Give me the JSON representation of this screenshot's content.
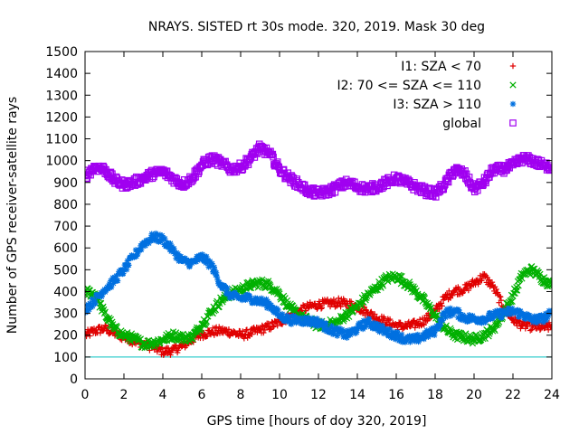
{
  "chart_data": {
    "type": "scatter",
    "title": "NRAYS. SISTED rt 30s mode. 320, 2019. Mask 30 deg",
    "xlabel": "GPS time [hours of doy 320, 2019]",
    "ylabel": "Number of GPS receiver-satellite rays",
    "xlim": [
      0,
      24
    ],
    "ylim": [
      0,
      1500
    ],
    "xticks": [
      "0",
      "2",
      "4",
      "6",
      "8",
      "10",
      "12",
      "14",
      "16",
      "18",
      "20",
      "22",
      "24"
    ],
    "yticks": [
      "0",
      "100",
      "200",
      "300",
      "400",
      "500",
      "600",
      "700",
      "800",
      "900",
      "1000",
      "1100",
      "1200",
      "1300",
      "1400",
      "1500"
    ],
    "reference_line": {
      "y": 100,
      "color": "#00c0c0"
    },
    "legend_position": "top-right",
    "series": [
      {
        "name": "I1: SZA < 70",
        "marker": "+",
        "color": "#e00000",
        "x": [
          0,
          0.5,
          1,
          1.5,
          2,
          2.5,
          3,
          3.5,
          4,
          4.5,
          5,
          5.5,
          6,
          6.5,
          7,
          7.5,
          8,
          8.5,
          9,
          9.5,
          10,
          10.5,
          11,
          11.5,
          12,
          12.5,
          13,
          13.5,
          14,
          14.5,
          15,
          15.5,
          16,
          16.5,
          17,
          17.5,
          18,
          18.5,
          19,
          19.5,
          20,
          20.5,
          21,
          21.5,
          22,
          22.5,
          23,
          23.5,
          24
        ],
        "values": [
          200,
          220,
          230,
          210,
          190,
          175,
          160,
          145,
          125,
          130,
          150,
          180,
          205,
          215,
          220,
          215,
          200,
          210,
          225,
          240,
          260,
          285,
          310,
          330,
          340,
          345,
          350,
          345,
          330,
          305,
          280,
          260,
          245,
          240,
          250,
          270,
          310,
          370,
          405,
          410,
          440,
          470,
          420,
          330,
          270,
          245,
          240,
          235,
          240
        ]
      },
      {
        "name": "I2: 70 <= SZA <= 110",
        "marker": "x",
        "color": "#00b000",
        "x": [
          0,
          0.5,
          1,
          1.5,
          2,
          2.5,
          3,
          3.5,
          4,
          4.5,
          5,
          5.5,
          6,
          6.5,
          7,
          7.5,
          8,
          8.5,
          9,
          9.5,
          10,
          10.5,
          11,
          11.5,
          12,
          12.5,
          13,
          13.5,
          14,
          14.5,
          15,
          15.5,
          16,
          16.5,
          17,
          17.5,
          18,
          18.5,
          19,
          19.5,
          20,
          20.5,
          21,
          21.5,
          22,
          22.5,
          23,
          23.5,
          24
        ],
        "values": [
          400,
          390,
          300,
          230,
          200,
          185,
          160,
          165,
          180,
          200,
          190,
          190,
          250,
          310,
          360,
          390,
          410,
          430,
          440,
          430,
          390,
          330,
          290,
          265,
          245,
          250,
          260,
          300,
          330,
          380,
          420,
          460,
          470,
          440,
          400,
          350,
          290,
          230,
          200,
          190,
          180,
          200,
          230,
          300,
          380,
          480,
          500,
          460,
          430
        ]
      },
      {
        "name": "I3: SZA > 110",
        "marker": "*",
        "color": "#0070e0",
        "x": [
          0,
          0.5,
          1,
          1.5,
          2,
          2.5,
          3,
          3.5,
          4,
          4.5,
          5,
          5.5,
          6,
          6.5,
          7,
          7.5,
          8,
          8.5,
          9,
          9.5,
          10,
          10.5,
          11,
          11.5,
          12,
          12.5,
          13,
          13.5,
          14,
          14.5,
          15,
          15.5,
          16,
          16.5,
          17,
          17.5,
          18,
          18.5,
          19,
          19.5,
          20,
          20.5,
          21,
          21.5,
          22,
          22.5,
          23,
          23.5,
          24
        ],
        "values": [
          320,
          360,
          410,
          450,
          500,
          560,
          620,
          650,
          640,
          590,
          540,
          530,
          560,
          520,
          430,
          380,
          370,
          370,
          355,
          340,
          290,
          270,
          270,
          265,
          260,
          230,
          215,
          200,
          230,
          260,
          240,
          215,
          200,
          180,
          180,
          200,
          220,
          300,
          310,
          280,
          275,
          275,
          290,
          300,
          310,
          295,
          270,
          275,
          300
        ]
      },
      {
        "name": "global",
        "marker": "square",
        "color": "#a000f0",
        "x": [
          0,
          0.5,
          1,
          1.5,
          2,
          2.5,
          3,
          3.5,
          4,
          4.5,
          5,
          5.5,
          6,
          6.5,
          7,
          7.5,
          8,
          8.5,
          9,
          9.5,
          10,
          10.5,
          11,
          11.5,
          12,
          12.5,
          13,
          13.5,
          14,
          14.5,
          15,
          15.5,
          16,
          16.5,
          17,
          17.5,
          18,
          18.5,
          19,
          19.5,
          20,
          20.5,
          21,
          21.5,
          22,
          22.5,
          23,
          23.5,
          24
        ],
        "values": [
          930,
          970,
          960,
          910,
          890,
          900,
          920,
          940,
          950,
          920,
          890,
          920,
          980,
          1010,
          990,
          960,
          970,
          1010,
          1060,
          1030,
          960,
          920,
          890,
          860,
          850,
          860,
          880,
          900,
          880,
          870,
          880,
          900,
          920,
          900,
          880,
          860,
          850,
          890,
          960,
          940,
          870,
          900,
          960,
          960,
          980,
          1010,
          1000,
          980,
          970
        ]
      }
    ]
  }
}
